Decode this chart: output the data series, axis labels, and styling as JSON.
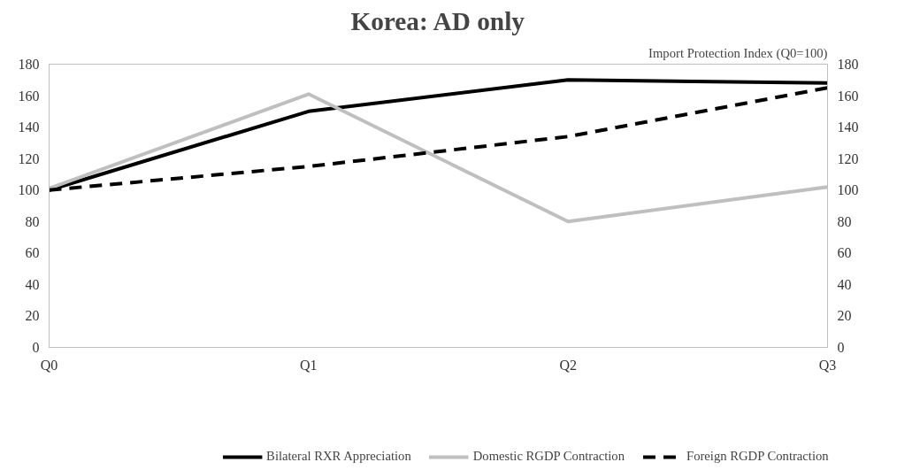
{
  "chart_data": {
    "type": "line",
    "title": "Korea: AD only",
    "y2label": "Import Protection Index (Q0=100)",
    "categories": [
      "Q0",
      "Q1",
      "Q2",
      "Q3"
    ],
    "series": [
      {
        "name": "Bilateral RXR Appreciation",
        "color": "#000000",
        "line_style": "solid",
        "values": [
          100,
          150,
          170,
          168
        ]
      },
      {
        "name": "Domestic RGDP Contraction",
        "color": "#bfbfbf",
        "line_style": "solid",
        "values": [
          101,
          161,
          80,
          102
        ]
      },
      {
        "name": "Foreign RGDP Contraction",
        "color": "#000000",
        "line_style": "dashed",
        "values": [
          100,
          115,
          134,
          165
        ]
      }
    ],
    "ylim": [
      0,
      180
    ],
    "yticks": [
      0,
      20,
      40,
      60,
      80,
      100,
      120,
      140,
      160,
      180
    ],
    "y2lim": [
      0,
      180
    ],
    "y2ticks": [
      0,
      20,
      40,
      60,
      80,
      100,
      120,
      140,
      160,
      180
    ],
    "grid": false,
    "legend": "bottom",
    "marker": "none"
  }
}
